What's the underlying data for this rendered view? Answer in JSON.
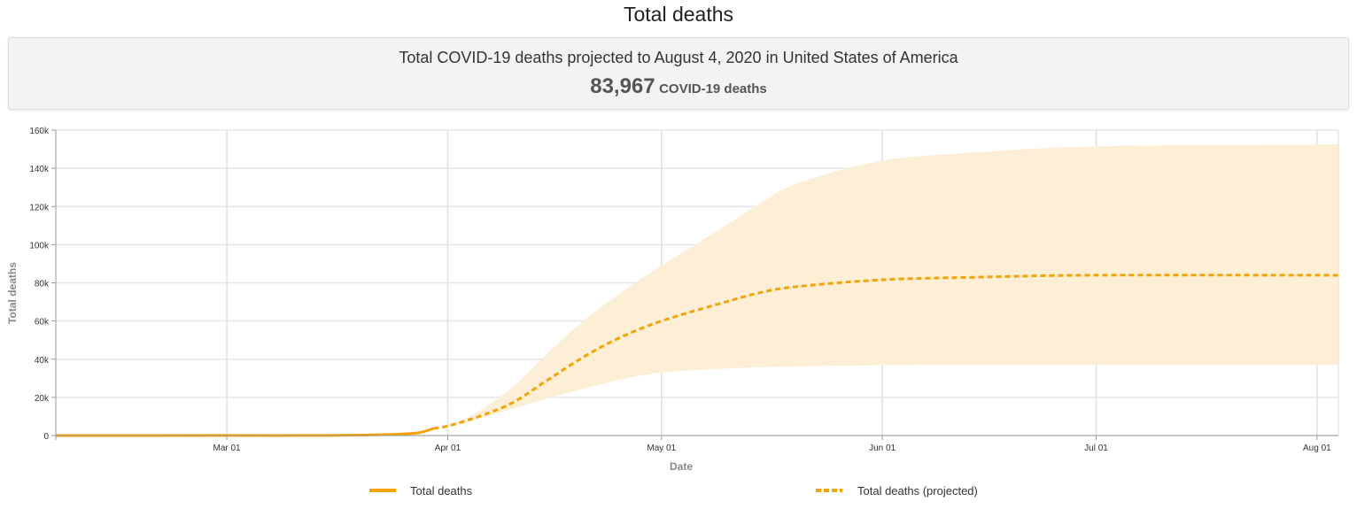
{
  "page_title": "Total deaths",
  "summary": {
    "line": "Total COVID-19 deaths projected to August 4, 2020 in United States of America",
    "count": "83,967",
    "count_unit": "COVID-19 deaths"
  },
  "chart_data": {
    "type": "line",
    "xlabel": "Date",
    "ylabel": "Total deaths",
    "xlim": [
      "2020-02-06",
      "2020-08-04"
    ],
    "ylim": [
      0,
      160000
    ],
    "grid": true,
    "legend_placement": "bottom",
    "x_ticks": [
      {
        "date": "2020-03-01",
        "label": "Mar 01"
      },
      {
        "date": "2020-04-01",
        "label": "Apr 01"
      },
      {
        "date": "2020-05-01",
        "label": "May 01"
      },
      {
        "date": "2020-06-01",
        "label": "Jun 01"
      },
      {
        "date": "2020-07-01",
        "label": "Jul 01"
      },
      {
        "date": "2020-08-01",
        "label": "Aug 01"
      }
    ],
    "y_ticks": [
      {
        "value": 0,
        "label": "0"
      },
      {
        "value": 20000,
        "label": "20k"
      },
      {
        "value": 40000,
        "label": "40k"
      },
      {
        "value": 60000,
        "label": "60k"
      },
      {
        "value": 80000,
        "label": "80k"
      },
      {
        "value": 100000,
        "label": "100k"
      },
      {
        "value": 120000,
        "label": "120k"
      },
      {
        "value": 140000,
        "label": "140k"
      },
      {
        "value": 160000,
        "label": "160k"
      }
    ],
    "colors": {
      "line": "#f5a300",
      "band": "#fdefd6"
    },
    "series": [
      {
        "name": "Total deaths",
        "style": "solid",
        "x": [
          "2020-02-06",
          "2020-02-29",
          "2020-03-10",
          "2020-03-15",
          "2020-03-20",
          "2020-03-25",
          "2020-03-28",
          "2020-03-30"
        ],
        "y": [
          0,
          30,
          30,
          70,
          250,
          700,
          1500,
          3700
        ]
      },
      {
        "name": "Total deaths (projected)",
        "style": "dashed",
        "x": [
          "2020-03-30",
          "2020-04-01",
          "2020-04-05",
          "2020-04-10",
          "2020-04-15",
          "2020-04-20",
          "2020-04-25",
          "2020-05-01",
          "2020-05-10",
          "2020-05-15",
          "2020-05-20",
          "2020-06-01",
          "2020-06-15",
          "2020-07-01",
          "2020-08-04"
        ],
        "y": [
          3700,
          5000,
          9500,
          17000,
          29000,
          41000,
          51000,
          60000,
          70000,
          75000,
          78000,
          81600,
          83000,
          84000,
          83967
        ],
        "lower": [
          3700,
          5000,
          8500,
          14000,
          19500,
          24500,
          29000,
          33000,
          35000,
          35800,
          36200,
          36800,
          37000,
          37000,
          37000
        ],
        "upper": [
          3700,
          5000,
          12000,
          25000,
          43000,
          60000,
          74000,
          89000,
          110000,
          122000,
          132000,
          144000,
          148500,
          151500,
          152500
        ]
      }
    ]
  }
}
